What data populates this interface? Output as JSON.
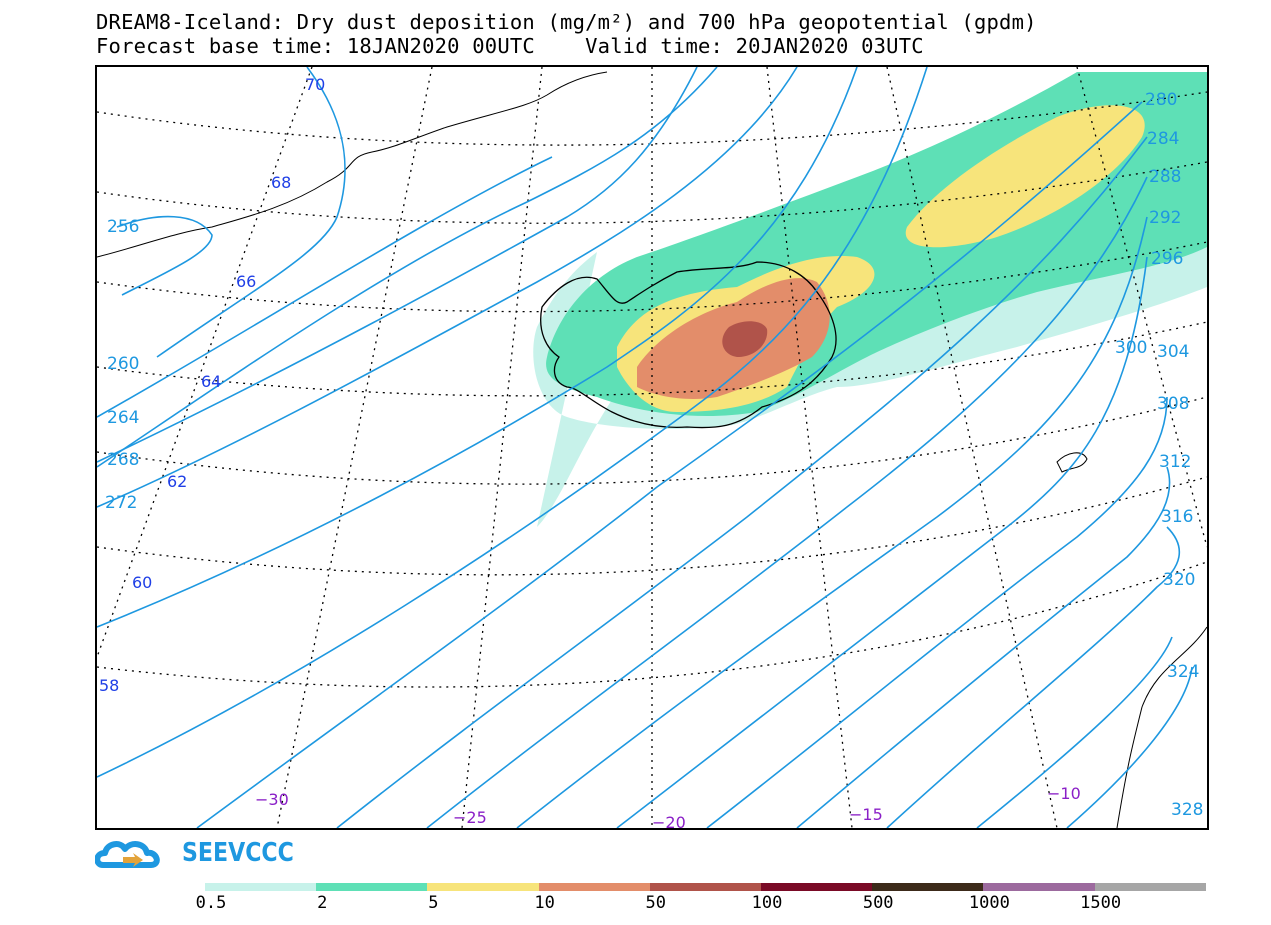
{
  "title": {
    "line1": "DREAM8-Iceland: Dry dust deposition (mg/m²) and 700 hPa geopotential (gpdm)",
    "line2": "Forecast base time: 18JAN2020 00UTC    Valid time: 20JAN2020 03UTC"
  },
  "map": {
    "geopotential_labels": [
      "256",
      "260",
      "264",
      "268",
      "272",
      "280",
      "284",
      "288",
      "292",
      "296",
      "300",
      "304",
      "308",
      "312",
      "316",
      "320",
      "324",
      "328"
    ],
    "latitude_labels": [
      "70",
      "68",
      "66",
      "64",
      "62",
      "60",
      "58"
    ],
    "longitude_labels": [
      "−30",
      "−25",
      "−20",
      "−15",
      "−10"
    ],
    "contour_color": "#1e98e0"
  },
  "logo": {
    "text": "SEEVCCC",
    "icon": "cloud-logo-icon",
    "color": "#1e98e0"
  },
  "colorbar": {
    "labels": [
      "0.5",
      "2",
      "5",
      "10",
      "50",
      "100",
      "500",
      "1000",
      "1500"
    ],
    "colors": [
      "#c7f2ea",
      "#5ee0b6",
      "#f7e47b",
      "#e38d6a",
      "#b0534a",
      "#7a0a26",
      "#3c2a1a",
      "#9c6a9e",
      "#a6a6a6"
    ]
  }
}
